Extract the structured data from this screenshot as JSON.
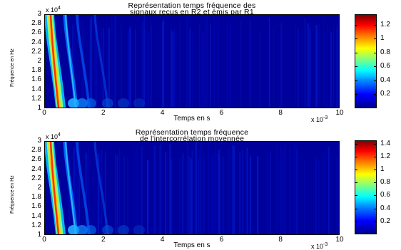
{
  "chart_data": [
    {
      "type": "heatmap",
      "title_line1": "Représentation temps fréquence des",
      "title_line2": "signaux reçus en R2 et émis par R1",
      "xlabel": "Temps en s",
      "ylabel": "Fréquence en Hz",
      "x_exponent": "x 10",
      "x_exponent_power": "-3",
      "y_exponent": "x 10",
      "y_exponent_power": "4",
      "xlim": [
        0,
        10
      ],
      "ylim": [
        1,
        3
      ],
      "xticks": [
        "0",
        "2",
        "4",
        "6",
        "8",
        "10"
      ],
      "yticks": [
        "1",
        "1.2",
        "1.4",
        "1.6",
        "1.8",
        "2",
        "2.2",
        "2.4",
        "2.6",
        "2.8",
        "3"
      ],
      "colorbar_ticks": [
        "0.2",
        "0.4",
        "0.6",
        "0.8",
        "1",
        "1.2"
      ],
      "colorbar_range": [
        0,
        1.35
      ],
      "colormap": "jet"
    },
    {
      "type": "heatmap",
      "title_line1": "Représentation temps fréquence",
      "title_line2": "de l'intercorrélation moyennée",
      "xlabel": "Temps en s",
      "ylabel": "Fréquence en Hz",
      "x_exponent": "x 10",
      "x_exponent_power": "-3",
      "y_exponent": "x 10",
      "y_exponent_power": "4",
      "xlim": [
        0,
        10
      ],
      "ylim": [
        1,
        3
      ],
      "xticks": [
        "0",
        "2",
        "4",
        "6",
        "8",
        "10"
      ],
      "yticks": [
        "1",
        "1.2",
        "1.4",
        "1.6",
        "1.8",
        "2",
        "2.2",
        "2.4",
        "2.6",
        "2.8",
        "3"
      ],
      "colorbar_ticks": [
        "0.2",
        "0.4",
        "0.6",
        "0.8",
        "1",
        "1.2",
        "1.4"
      ],
      "colorbar_range": [
        0,
        1.45
      ],
      "colormap": "jet"
    }
  ]
}
